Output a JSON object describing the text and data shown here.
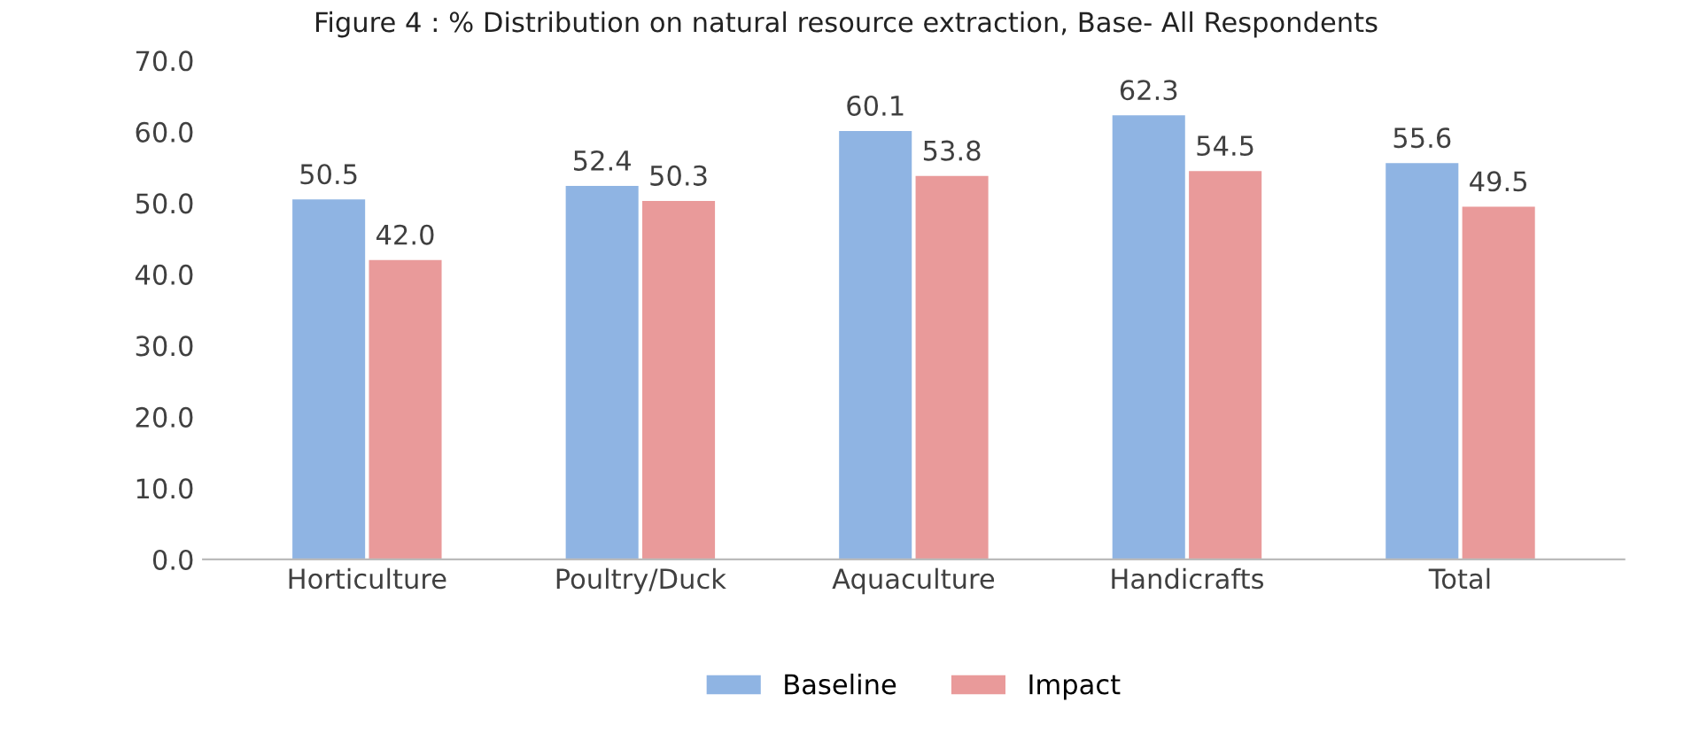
{
  "chart_data": {
    "type": "bar",
    "title": "Figure 4 : % Distribution on natural resource extraction, Base- All Respondents",
    "categories": [
      "Horticulture",
      "Poultry/Duck",
      "Aquaculture",
      "Handicrafts",
      "Total"
    ],
    "series": [
      {
        "name": "Baseline",
        "color": "#8fb4e3",
        "values": [
          50.5,
          52.4,
          60.1,
          62.3,
          55.6
        ],
        "value_labels": [
          "50.5",
          "52.4",
          "60.1",
          "62.3",
          "55.6"
        ]
      },
      {
        "name": "Impact",
        "color": "#e99a9a",
        "values": [
          42.0,
          50.3,
          53.8,
          54.5,
          49.5
        ],
        "value_labels": [
          "42.0",
          "50.3",
          "53.8",
          "54.5",
          "49.5"
        ]
      }
    ],
    "ylim": [
      0,
      70
    ],
    "yticks": [
      {
        "value": 0,
        "label": "0.0"
      },
      {
        "value": 10,
        "label": "10.0"
      },
      {
        "value": 20,
        "label": "20.0"
      },
      {
        "value": 30,
        "label": "30.0"
      },
      {
        "value": 40,
        "label": "40.0"
      },
      {
        "value": 50,
        "label": "50.0"
      },
      {
        "value": 60,
        "label": "60.0"
      },
      {
        "value": 70,
        "label": "70.0"
      }
    ],
    "legend": "bottom",
    "grid": false
  }
}
